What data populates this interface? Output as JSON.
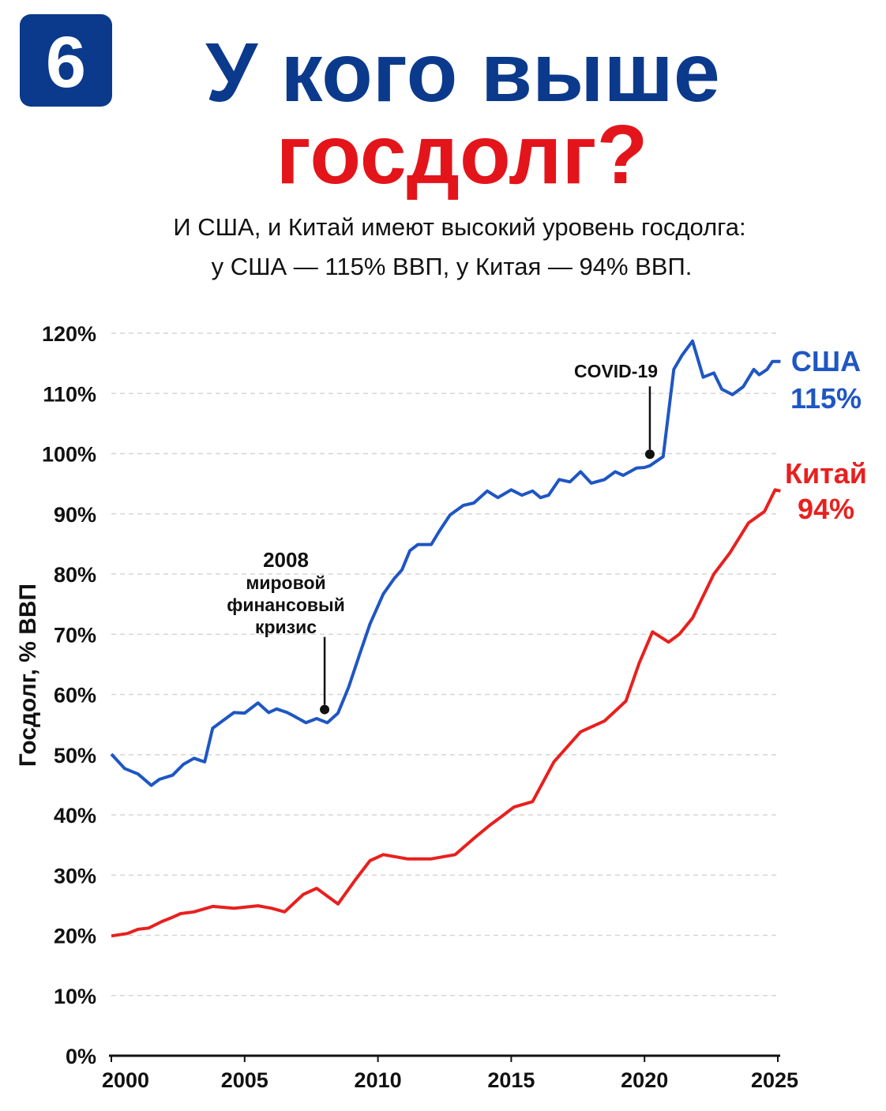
{
  "badge": "6",
  "chart_data": {
    "type": "line",
    "title": [
      "У кого выше",
      "госдолг?"
    ],
    "subtitle": [
      "И США, и Китай имеют высокий уровень госдолга:",
      "у США — 115% ВВП, у Китая — 94% ВВП."
    ],
    "y_label": "Госдолг, % ВВП",
    "xlim": [
      2000,
      2025
    ],
    "ylim": [
      0,
      120
    ],
    "xticks": [
      2000,
      2005,
      2010,
      2015,
      2020,
      2025
    ],
    "yticks": [
      {
        "value": 0,
        "label": "0%"
      },
      {
        "value": 10,
        "label": "10%"
      },
      {
        "value": 20,
        "label": "20%"
      },
      {
        "value": 30,
        "label": "30%"
      },
      {
        "value": 40,
        "label": "40%"
      },
      {
        "value": 50,
        "label": "50%"
      },
      {
        "value": 60,
        "label": "60%"
      },
      {
        "value": 70,
        "label": "70%"
      },
      {
        "value": 80,
        "label": "80%"
      },
      {
        "value": 90,
        "label": "90%"
      },
      {
        "value": 100,
        "label": "100%"
      },
      {
        "value": 110,
        "label": "110%"
      },
      {
        "value": 120,
        "label": "120%"
      }
    ],
    "grid": true,
    "series": [
      {
        "name": "США",
        "end_label": "115%",
        "color": "#1f56c3",
        "x": [
          2000,
          2000.5,
          2001.0,
          2001.5,
          2001.8,
          2002.3,
          2002.7,
          2003.1,
          2003.5,
          2003.8,
          2004.2,
          2004.6,
          2005.0,
          2005.5,
          2005.9,
          2006.2,
          2006.6,
          2006.9,
          2007.3,
          2007.7,
          2008.1,
          2008.5,
          2008.9,
          2009.3,
          2009.7,
          2010.2,
          2010.6,
          2010.9,
          2011.2,
          2011.5,
          2012.0,
          2012.3,
          2012.7,
          2013.2,
          2013.6,
          2014.1,
          2014.5,
          2015.0,
          2015.4,
          2015.8,
          2016.1,
          2016.4,
          2016.8,
          2017.2,
          2017.6,
          2018.0,
          2018.5,
          2018.9,
          2019.2,
          2019.7,
          2020.0,
          2020.2,
          2020.4,
          2020.7,
          2021.1,
          2021.4,
          2021.8,
          2022.2,
          2022.6,
          2022.9,
          2023.3,
          2023.7,
          2024.1,
          2024.3,
          2024.6,
          2024.8,
          2025.1
        ],
        "values": [
          50.1,
          47.7,
          46.8,
          44.9,
          45.9,
          46.6,
          48.4,
          49.4,
          48.8,
          54.4,
          55.7,
          57.0,
          56.9,
          58.6,
          57.0,
          57.6,
          57.0,
          56.3,
          55.3,
          56.0,
          55.3,
          56.9,
          61.2,
          66.5,
          71.7,
          76.7,
          79.2,
          80.7,
          83.9,
          84.9,
          84.9,
          87.1,
          89.8,
          91.4,
          91.8,
          93.8,
          92.7,
          94.0,
          93.1,
          93.8,
          92.7,
          93.1,
          95.7,
          95.3,
          97.0,
          95.1,
          95.7,
          97.0,
          96.4,
          97.6,
          97.7,
          98.0,
          98.6,
          99.5,
          114.0,
          116.3,
          118.7,
          112.7,
          113.4,
          110.7,
          109.8,
          111.1,
          114.0,
          113.1,
          114.0,
          115.3,
          115.3
        ]
      },
      {
        "name": "Китай",
        "end_label": "94%",
        "color": "#e8201e",
        "x": [
          2000,
          2000.6,
          2001.0,
          2001.4,
          2001.9,
          2002.3,
          2002.6,
          2003.1,
          2003.8,
          2004.6,
          2005.5,
          2006.0,
          2006.5,
          2007.2,
          2007.7,
          2008.5,
          2009.2,
          2009.7,
          2010.2,
          2011.1,
          2012.0,
          2012.9,
          2013.6,
          2014.2,
          2014.6,
          2015.1,
          2015.8,
          2016.6,
          2017.6,
          2018.5,
          2019.3,
          2019.8,
          2020.3,
          2020.9,
          2021.3,
          2021.8,
          2022.6,
          2023.2,
          2023.9,
          2024.5,
          2024.9,
          2025.1
        ],
        "values": [
          19.9,
          20.3,
          21.0,
          21.2,
          22.3,
          23.0,
          23.6,
          23.9,
          24.8,
          24.5,
          24.9,
          24.5,
          23.9,
          26.8,
          27.8,
          25.2,
          29.5,
          32.4,
          33.4,
          32.7,
          32.7,
          33.4,
          36.1,
          38.3,
          39.6,
          41.3,
          42.2,
          48.8,
          53.8,
          55.6,
          58.9,
          65.2,
          70.4,
          68.7,
          70.0,
          72.7,
          80.0,
          83.5,
          88.5,
          90.4,
          94.0,
          93.8
        ]
      }
    ],
    "annotations": [
      {
        "text": [
          "2008",
          "мировой",
          "финансовый",
          "кризис"
        ],
        "x": 2008.0,
        "y": 57.5
      },
      {
        "text": [
          "COVID-19"
        ],
        "x": 2020.2,
        "y": 99.9
      }
    ]
  }
}
